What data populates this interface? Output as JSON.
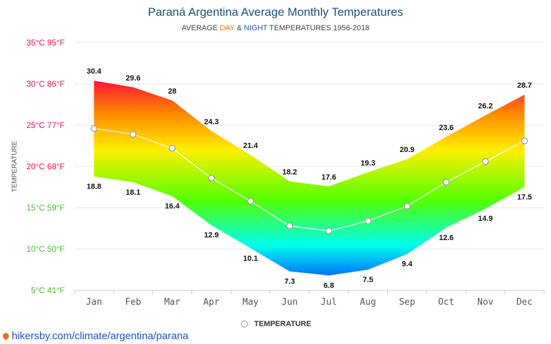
{
  "title": "Paraná Argentina Average Monthly Temperatures",
  "subtitle": {
    "prefix": "AVERAGE ",
    "day": "DAY",
    "amp": " & ",
    "night": "NIGHT",
    "suffix": " TEMPERATURES 1956-2018"
  },
  "legend": {
    "label": "TEMPERATURE"
  },
  "source": "hikersby.com/climate/argentina/parana",
  "chart_data": {
    "type": "area",
    "title": "Paraná Argentina Average Monthly Temperatures",
    "ylabel": "TEMPERATURE",
    "ylim": [
      5,
      35
    ],
    "grid": true,
    "yticks": [
      {
        "value": 35,
        "label": "35°C 95°F",
        "color": "#e0144c"
      },
      {
        "value": 30,
        "label": "30°C 86°F",
        "color": "#e0144c"
      },
      {
        "value": 25,
        "label": "25°C 77°F",
        "color": "#e0144c"
      },
      {
        "value": 20,
        "label": "20°C 68°F",
        "color": "#e0144c"
      },
      {
        "value": 15,
        "label": "15°C 59°F",
        "color": "#4cb82a"
      },
      {
        "value": 10,
        "label": "10°C 50°F",
        "color": "#4cb82a"
      },
      {
        "value": 5,
        "label": "5°C 41°F",
        "color": "#4cb82a"
      }
    ],
    "categories": [
      "Jan",
      "Feb",
      "Mar",
      "Apr",
      "May",
      "Jun",
      "Jul",
      "Aug",
      "Sep",
      "Oct",
      "Nov",
      "Dec"
    ],
    "series": [
      {
        "values": [
          30.4,
          29.6,
          28,
          24.3,
          21.4,
          18.2,
          17.6,
          19.3,
          20.9,
          23.6,
          26.2,
          28.7
        ]
      },
      {
        "values": [
          18.8,
          18.1,
          16.4,
          12.9,
          10.1,
          7.3,
          6.8,
          7.5,
          9.4,
          12.6,
          14.9,
          17.5
        ]
      },
      {
        "name": "TEMPERATURE",
        "values": [
          24.6,
          23.9,
          22.2,
          18.6,
          15.8,
          12.8,
          12.2,
          13.4,
          15.2,
          18.1,
          20.6,
          23.1
        ]
      }
    ],
    "colors": {
      "hot": "#ff0040",
      "warm": "#ff8800",
      "mild": "#ffee00",
      "cool": "#55ff00",
      "cold": "#00ffee",
      "freezing": "#0055ff"
    },
    "legend": "bottom"
  }
}
